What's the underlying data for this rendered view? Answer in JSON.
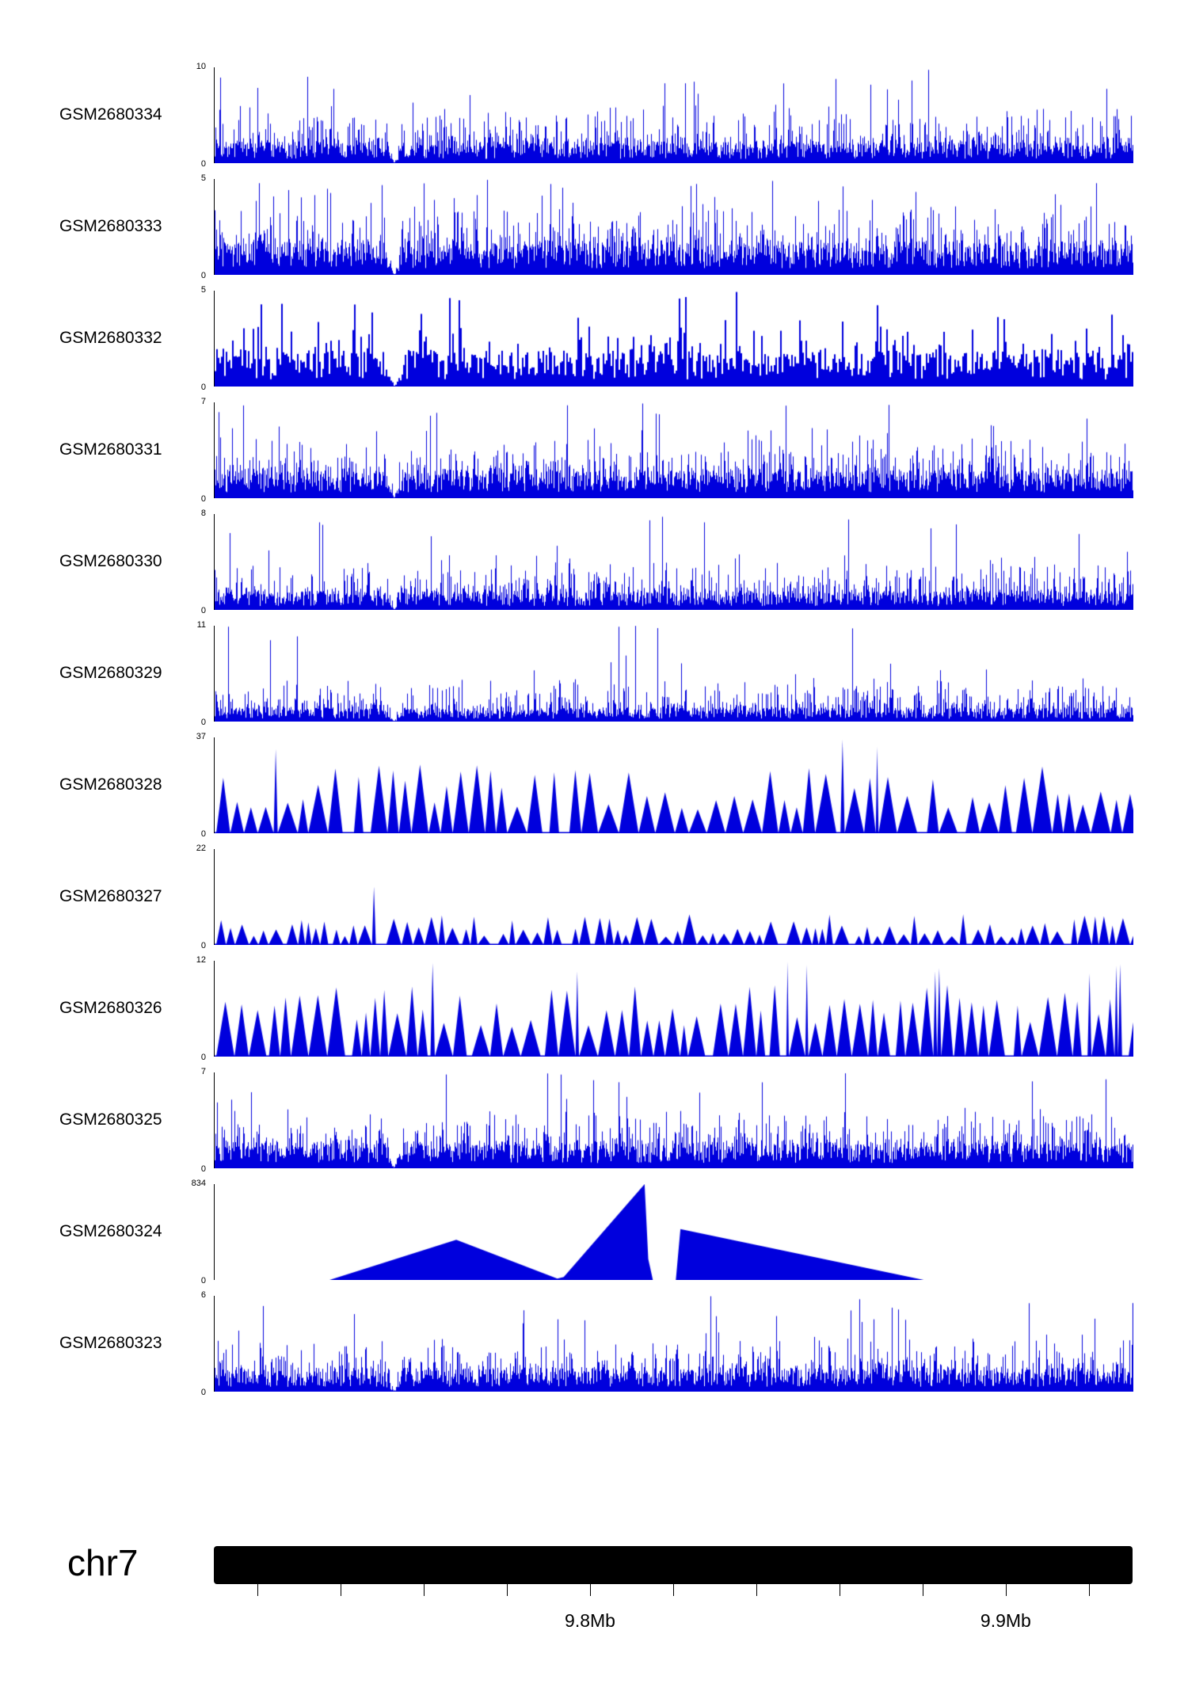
{
  "chart_data": {
    "type": "area",
    "subtype": "genome-browser-signal-tracks",
    "title": "",
    "signal_color": "#0000dd",
    "x_axis": {
      "chromosome": "chr7",
      "unit": "Mb",
      "range_mb": [
        9.7095,
        9.9305
      ],
      "ticks_mb": [
        9.72,
        9.74,
        9.76,
        9.78,
        9.8,
        9.82,
        9.84,
        9.86,
        9.88,
        9.9,
        9.92
      ],
      "labeled_ticks": [
        {
          "mb": 9.8,
          "label": "9.8Mb"
        },
        {
          "mb": 9.9,
          "label": "9.9Mb"
        }
      ]
    },
    "tracks": [
      {
        "name": "GSM2680334",
        "ymin": 0,
        "ymax": 10,
        "style": "dense",
        "render": {
          "seed": 101,
          "base": 0.18,
          "mid": 0.52,
          "tallProb": 0.012,
          "tallMin": 0.7,
          "notch": 0.195,
          "notchW": 12,
          "barW": 1
        }
      },
      {
        "name": "GSM2680333",
        "ymin": 0,
        "ymax": 5,
        "style": "dense",
        "render": {
          "seed": 102,
          "base": 0.28,
          "mid": 0.55,
          "tallProb": 0.02,
          "tallMin": 0.75,
          "notch": 0.195,
          "notchW": 12,
          "barW": 1
        }
      },
      {
        "name": "GSM2680332",
        "ymin": 0,
        "ymax": 5,
        "style": "dense",
        "render": {
          "seed": 103,
          "base": 0.3,
          "mid": 0.5,
          "tallProb": 0.02,
          "tallMin": 0.75,
          "notch": 0.195,
          "notchW": 18,
          "barW": 2
        }
      },
      {
        "name": "GSM2680331",
        "ymin": 0,
        "ymax": 7,
        "style": "dense",
        "render": {
          "seed": 104,
          "base": 0.24,
          "mid": 0.55,
          "tallProb": 0.015,
          "tallMin": 0.7,
          "notch": 0.195,
          "notchW": 12,
          "barW": 1
        }
      },
      {
        "name": "GSM2680330",
        "ymin": 0,
        "ymax": 8,
        "style": "dense",
        "render": {
          "seed": 105,
          "base": 0.16,
          "mid": 0.5,
          "tallProb": 0.012,
          "tallMin": 0.7,
          "notch": 0.195,
          "notchW": 10,
          "barW": 1
        }
      },
      {
        "name": "GSM2680329",
        "ymin": 0,
        "ymax": 11,
        "style": "dense",
        "render": {
          "seed": 106,
          "base": 0.12,
          "mid": 0.42,
          "tallProb": 0.008,
          "tallMin": 0.6,
          "notch": 0.195,
          "notchW": 12,
          "barW": 1
        }
      },
      {
        "name": "GSM2680328",
        "ymin": 0,
        "ymax": 37,
        "style": "triangles",
        "render": {
          "seed": 107,
          "wMin": 12,
          "wMax": 28,
          "hMin": 0.25,
          "hMax": 0.72,
          "spikeProb": 0.05,
          "spikeMin": 0.85,
          "gapProb": 0.12,
          "gap": 18
        }
      },
      {
        "name": "GSM2680327",
        "ymin": 0,
        "ymax": 22,
        "style": "triangles",
        "render": {
          "seed": 108,
          "wMin": 8,
          "wMax": 20,
          "hMin": 0.08,
          "hMax": 0.32,
          "spikeProb": 0.05,
          "spikeMin": 0.6,
          "gapProb": 0.2,
          "gap": 14
        }
      },
      {
        "name": "GSM2680326",
        "ymin": 0,
        "ymax": 12,
        "style": "triangles",
        "render": {
          "seed": 109,
          "wMin": 10,
          "wMax": 26,
          "hMin": 0.3,
          "hMax": 0.75,
          "spikeProb": 0.06,
          "spikeMin": 0.85,
          "gapProb": 0.1,
          "gap": 12
        }
      },
      {
        "name": "GSM2680325",
        "ymin": 0,
        "ymax": 7,
        "style": "dense",
        "render": {
          "seed": 110,
          "base": 0.22,
          "mid": 0.5,
          "tallProb": 0.012,
          "tallMin": 0.7,
          "notch": 0.195,
          "notchW": 12,
          "barW": 1
        }
      },
      {
        "name": "GSM2680324",
        "ymin": 0,
        "ymax": 834,
        "style": "polygon",
        "render": {
          "polygon": [
            [
              0.125,
              0
            ],
            [
              0.263,
              0.42
            ],
            [
              0.373,
              0.015
            ],
            [
              0.38,
              0.03
            ],
            [
              0.468,
              1.0
            ],
            [
              0.472,
              0.22
            ],
            [
              0.477,
              0
            ],
            [
              0.502,
              0
            ],
            [
              0.507,
              0.53
            ],
            [
              0.772,
              0
            ]
          ]
        }
      },
      {
        "name": "GSM2680323",
        "ymin": 0,
        "ymax": 6,
        "style": "dense",
        "render": {
          "seed": 111,
          "base": 0.2,
          "mid": 0.45,
          "tallProb": 0.015,
          "tallMin": 0.7,
          "notch": 0.195,
          "notchW": 12,
          "barW": 1
        }
      }
    ]
  },
  "footer": {
    "chromosome_label": "chr7"
  }
}
